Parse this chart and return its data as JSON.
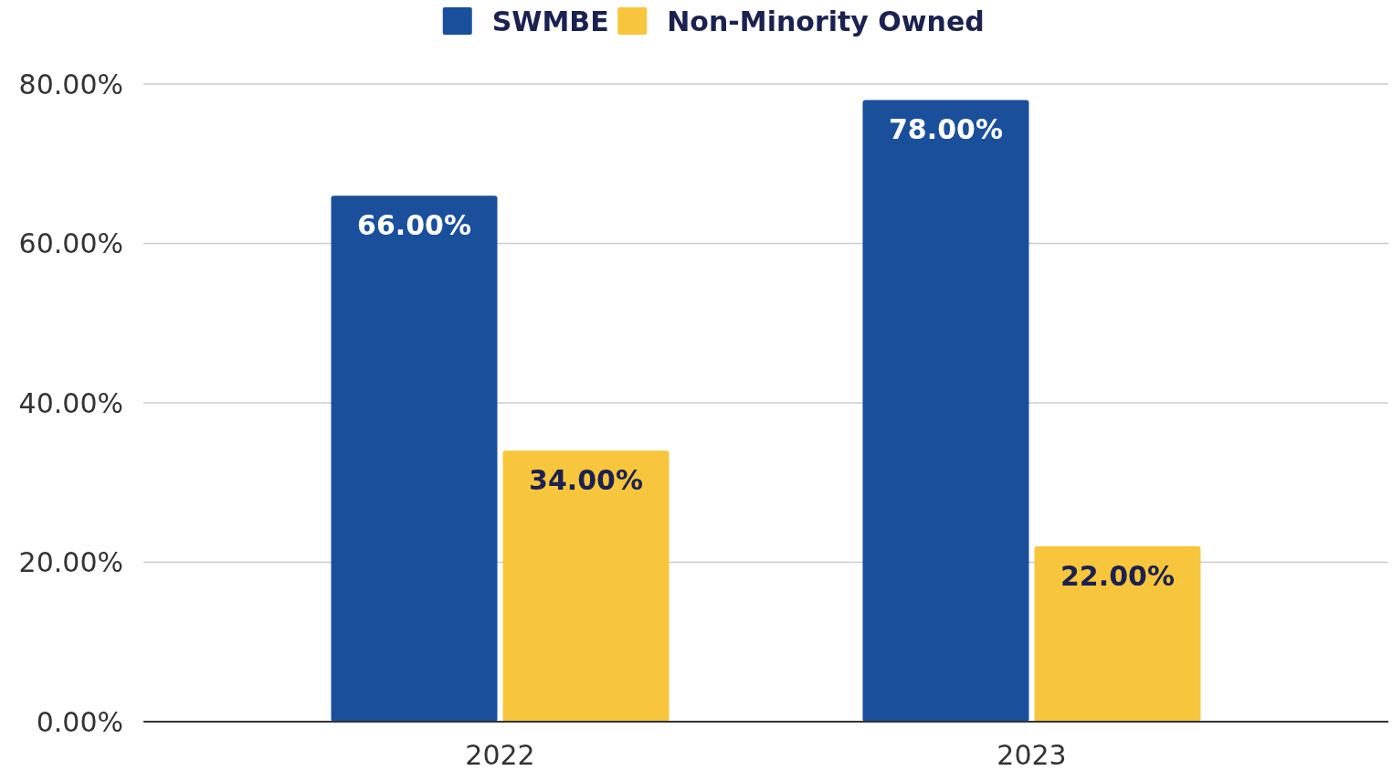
{
  "chart_data": {
    "type": "bar",
    "categories": [
      "2022",
      "2023"
    ],
    "series": [
      {
        "name": "SWMBE",
        "color": "#1a4f9c",
        "values": [
          66,
          78
        ],
        "value_labels": [
          "66.00%",
          "78.00%"
        ]
      },
      {
        "name": "Non-Minority Owned",
        "color": "#f8c63c",
        "values": [
          34,
          22
        ],
        "value_labels": [
          "34.00%",
          "22.00%"
        ]
      }
    ],
    "ylim": [
      0,
      80
    ],
    "yticks": [
      {
        "value": 0,
        "label": "0.00%"
      },
      {
        "value": 20,
        "label": "20.00%"
      },
      {
        "value": 40,
        "label": "40.00%"
      },
      {
        "value": 60,
        "label": "60.00%"
      },
      {
        "value": 80,
        "label": "80.00%"
      }
    ],
    "grid": "y",
    "legend": "top"
  }
}
